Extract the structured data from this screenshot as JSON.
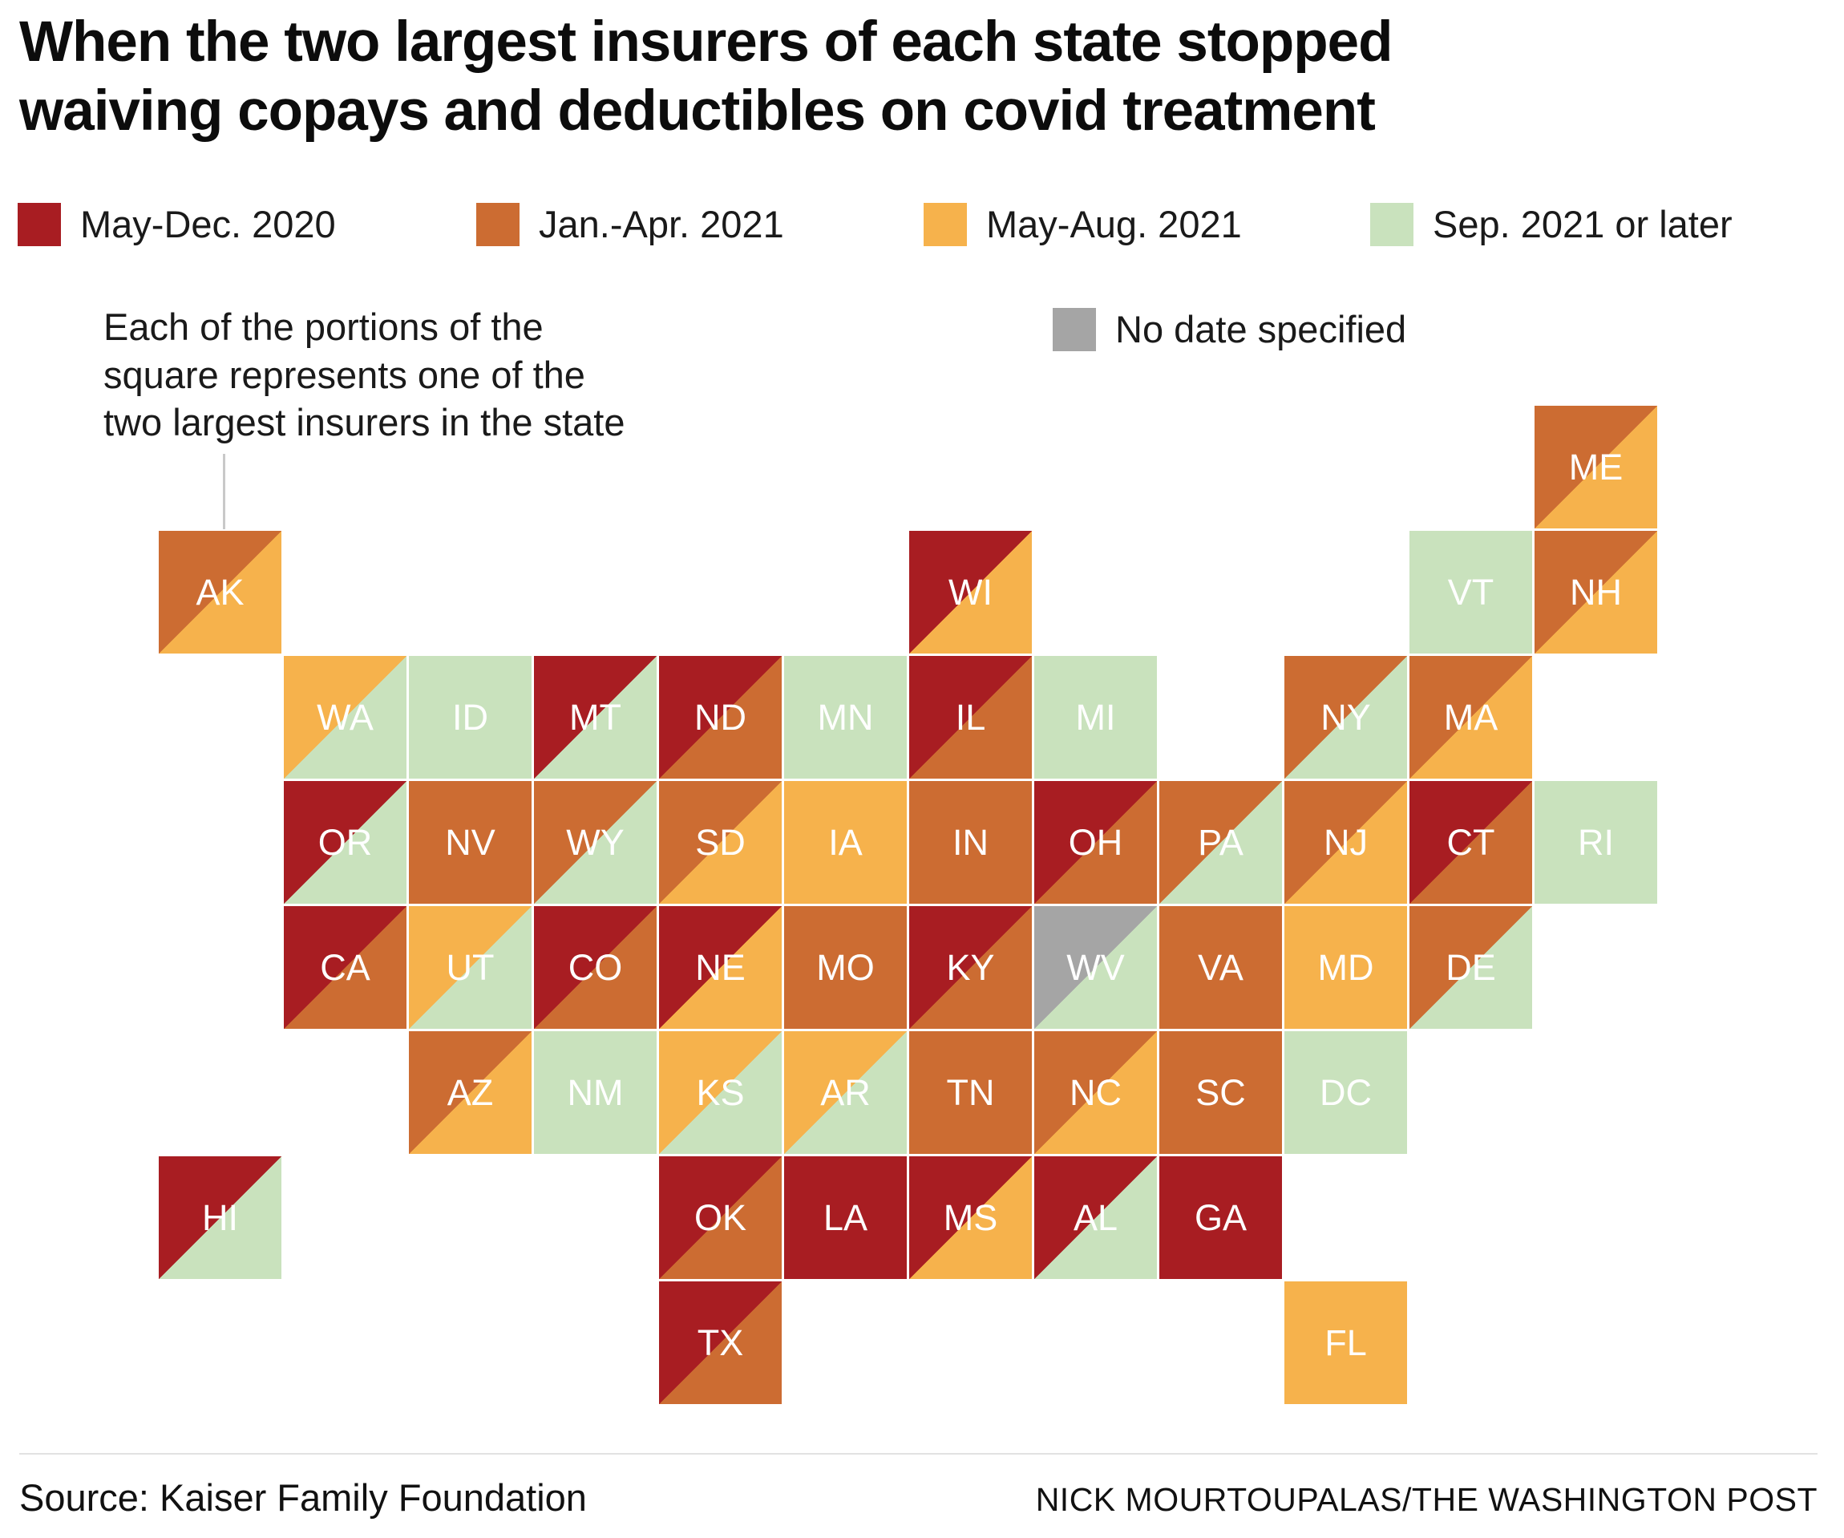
{
  "title": "When the two largest insurers of each state stopped\nwaiving copays and deductibles on covid treatment",
  "legend": {
    "items": [
      {
        "key": "red",
        "label": "May-Dec. 2020"
      },
      {
        "key": "orange",
        "label": "Jan.-Apr. 2021"
      },
      {
        "key": "yellow",
        "label": "May-Aug. 2021"
      },
      {
        "key": "green",
        "label": "Sep. 2021 or later"
      }
    ],
    "no_date": {
      "key": "gray",
      "label": "No date specified"
    }
  },
  "palette": {
    "red": "#a81d22",
    "orange": "#cc6c32",
    "yellow": "#f6b24c",
    "green": "#c9e2bd",
    "gray": "#a5a5a5"
  },
  "annotation": {
    "text": "Each of the portions of the\nsquare represents one of the\ntwo largest insurers in the state"
  },
  "chart_data": {
    "type": "heatmap",
    "subtype": "tile-grid-cartogram",
    "title": "When the two largest insurers of each state stopped waiving copays and deductibles on covid treatment",
    "categories": {
      "red": "May-Dec. 2020",
      "orange": "Jan.-Apr. 2021",
      "yellow": "May-Aug. 2021",
      "green": "Sep. 2021 or later",
      "gray": "No date specified"
    },
    "note": "Each square is one state; the two diagonal halves (tl = upper-left insurer, br = lower-right insurer) are the state's two largest insurers",
    "grid": {
      "cols": 12,
      "rows": 8
    },
    "states": [
      {
        "abbr": "ME",
        "col": 11,
        "row": 0,
        "tl": "orange",
        "br": "yellow"
      },
      {
        "abbr": "AK",
        "col": 0,
        "row": 1,
        "tl": "orange",
        "br": "yellow"
      },
      {
        "abbr": "WI",
        "col": 6,
        "row": 1,
        "tl": "red",
        "br": "yellow"
      },
      {
        "abbr": "VT",
        "col": 10,
        "row": 1,
        "tl": "green",
        "br": "green"
      },
      {
        "abbr": "NH",
        "col": 11,
        "row": 1,
        "tl": "orange",
        "br": "yellow"
      },
      {
        "abbr": "WA",
        "col": 1,
        "row": 2,
        "tl": "yellow",
        "br": "green"
      },
      {
        "abbr": "ID",
        "col": 2,
        "row": 2,
        "tl": "green",
        "br": "green"
      },
      {
        "abbr": "MT",
        "col": 3,
        "row": 2,
        "tl": "red",
        "br": "green"
      },
      {
        "abbr": "ND",
        "col": 4,
        "row": 2,
        "tl": "red",
        "br": "orange"
      },
      {
        "abbr": "MN",
        "col": 5,
        "row": 2,
        "tl": "green",
        "br": "green"
      },
      {
        "abbr": "IL",
        "col": 6,
        "row": 2,
        "tl": "red",
        "br": "orange"
      },
      {
        "abbr": "MI",
        "col": 7,
        "row": 2,
        "tl": "green",
        "br": "green"
      },
      {
        "abbr": "NY",
        "col": 9,
        "row": 2,
        "tl": "orange",
        "br": "green"
      },
      {
        "abbr": "MA",
        "col": 10,
        "row": 2,
        "tl": "orange",
        "br": "yellow"
      },
      {
        "abbr": "OR",
        "col": 1,
        "row": 3,
        "tl": "red",
        "br": "green"
      },
      {
        "abbr": "NV",
        "col": 2,
        "row": 3,
        "tl": "orange",
        "br": "orange"
      },
      {
        "abbr": "WY",
        "col": 3,
        "row": 3,
        "tl": "orange",
        "br": "green"
      },
      {
        "abbr": "SD",
        "col": 4,
        "row": 3,
        "tl": "orange",
        "br": "yellow"
      },
      {
        "abbr": "IA",
        "col": 5,
        "row": 3,
        "tl": "yellow",
        "br": "yellow"
      },
      {
        "abbr": "IN",
        "col": 6,
        "row": 3,
        "tl": "orange",
        "br": "orange"
      },
      {
        "abbr": "OH",
        "col": 7,
        "row": 3,
        "tl": "red",
        "br": "orange"
      },
      {
        "abbr": "PA",
        "col": 8,
        "row": 3,
        "tl": "orange",
        "br": "green"
      },
      {
        "abbr": "NJ",
        "col": 9,
        "row": 3,
        "tl": "orange",
        "br": "yellow"
      },
      {
        "abbr": "CT",
        "col": 10,
        "row": 3,
        "tl": "red",
        "br": "orange"
      },
      {
        "abbr": "RI",
        "col": 11,
        "row": 3,
        "tl": "green",
        "br": "green"
      },
      {
        "abbr": "CA",
        "col": 1,
        "row": 4,
        "tl": "red",
        "br": "orange"
      },
      {
        "abbr": "UT",
        "col": 2,
        "row": 4,
        "tl": "yellow",
        "br": "green"
      },
      {
        "abbr": "CO",
        "col": 3,
        "row": 4,
        "tl": "red",
        "br": "orange"
      },
      {
        "abbr": "NE",
        "col": 4,
        "row": 4,
        "tl": "red",
        "br": "yellow"
      },
      {
        "abbr": "MO",
        "col": 5,
        "row": 4,
        "tl": "orange",
        "br": "orange"
      },
      {
        "abbr": "KY",
        "col": 6,
        "row": 4,
        "tl": "red",
        "br": "orange"
      },
      {
        "abbr": "WV",
        "col": 7,
        "row": 4,
        "tl": "gray",
        "br": "green"
      },
      {
        "abbr": "VA",
        "col": 8,
        "row": 4,
        "tl": "orange",
        "br": "orange"
      },
      {
        "abbr": "MD",
        "col": 9,
        "row": 4,
        "tl": "yellow",
        "br": "yellow"
      },
      {
        "abbr": "DE",
        "col": 10,
        "row": 4,
        "tl": "orange",
        "br": "green"
      },
      {
        "abbr": "AZ",
        "col": 2,
        "row": 5,
        "tl": "orange",
        "br": "yellow"
      },
      {
        "abbr": "NM",
        "col": 3,
        "row": 5,
        "tl": "green",
        "br": "green"
      },
      {
        "abbr": "KS",
        "col": 4,
        "row": 5,
        "tl": "yellow",
        "br": "green"
      },
      {
        "abbr": "AR",
        "col": 5,
        "row": 5,
        "tl": "yellow",
        "br": "green"
      },
      {
        "abbr": "TN",
        "col": 6,
        "row": 5,
        "tl": "orange",
        "br": "orange"
      },
      {
        "abbr": "NC",
        "col": 7,
        "row": 5,
        "tl": "orange",
        "br": "yellow"
      },
      {
        "abbr": "SC",
        "col": 8,
        "row": 5,
        "tl": "orange",
        "br": "orange"
      },
      {
        "abbr": "DC",
        "col": 9,
        "row": 5,
        "tl": "green",
        "br": "green"
      },
      {
        "abbr": "HI",
        "col": 0,
        "row": 6,
        "tl": "red",
        "br": "green"
      },
      {
        "abbr": "OK",
        "col": 4,
        "row": 6,
        "tl": "red",
        "br": "orange"
      },
      {
        "abbr": "LA",
        "col": 5,
        "row": 6,
        "tl": "red",
        "br": "red"
      },
      {
        "abbr": "MS",
        "col": 6,
        "row": 6,
        "tl": "red",
        "br": "yellow"
      },
      {
        "abbr": "AL",
        "col": 7,
        "row": 6,
        "tl": "red",
        "br": "green"
      },
      {
        "abbr": "GA",
        "col": 8,
        "row": 6,
        "tl": "red",
        "br": "red"
      },
      {
        "abbr": "TX",
        "col": 4,
        "row": 7,
        "tl": "red",
        "br": "orange"
      },
      {
        "abbr": "FL",
        "col": 9,
        "row": 7,
        "tl": "yellow",
        "br": "yellow"
      }
    ]
  },
  "footer": {
    "source": "Source: Kaiser Family Foundation",
    "credit": "NICK MOURTOUPALAS/THE WASHINGTON POST"
  }
}
